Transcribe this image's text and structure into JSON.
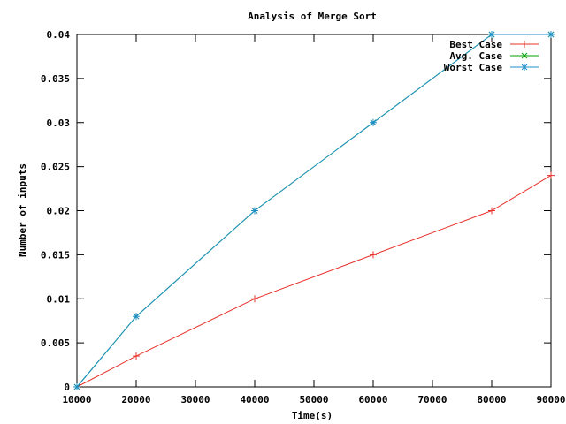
{
  "chart_data": {
    "type": "line",
    "title": "Analysis of Merge Sort",
    "xlabel": "Time(s)",
    "ylabel": "Number of inputs",
    "xlim": [
      10000,
      90000
    ],
    "ylim": [
      0,
      0.04
    ],
    "x_ticks": [
      "10000",
      "20000",
      "30000",
      "40000",
      "50000",
      "60000",
      "70000",
      "80000",
      "90000"
    ],
    "y_ticks": [
      "0",
      "0.005",
      "0.01",
      "0.015",
      "0.02",
      "0.025",
      "0.03",
      "0.035",
      "0.04"
    ],
    "x_tick_values": [
      10000,
      20000,
      30000,
      40000,
      50000,
      60000,
      70000,
      80000,
      90000
    ],
    "y_tick_values": [
      0,
      0.005,
      0.01,
      0.015,
      0.02,
      0.025,
      0.03,
      0.035,
      0.04
    ],
    "legend_position": "top-right",
    "grid": false,
    "series": [
      {
        "name": "Best Case",
        "color": "#e8302a",
        "marker": "plus",
        "x": [
          10000,
          20000,
          40000,
          60000,
          80000,
          90000
        ],
        "y": [
          0,
          0.0035,
          0.01,
          0.015,
          0.02,
          0.024
        ]
      },
      {
        "name": "Avg. Case",
        "color": "#00a000",
        "marker": "cross",
        "x": [
          10000,
          20000,
          40000,
          60000,
          80000,
          90000
        ],
        "y": [
          0,
          0.008,
          0.02,
          0.03,
          0.04,
          0.04
        ]
      },
      {
        "name": "Worst Case",
        "color": "#1f8fc8",
        "marker": "star",
        "x": [
          10000,
          20000,
          40000,
          60000,
          80000,
          90000
        ],
        "y": [
          0,
          0.008,
          0.02,
          0.03,
          0.04,
          0.04
        ]
      }
    ]
  }
}
